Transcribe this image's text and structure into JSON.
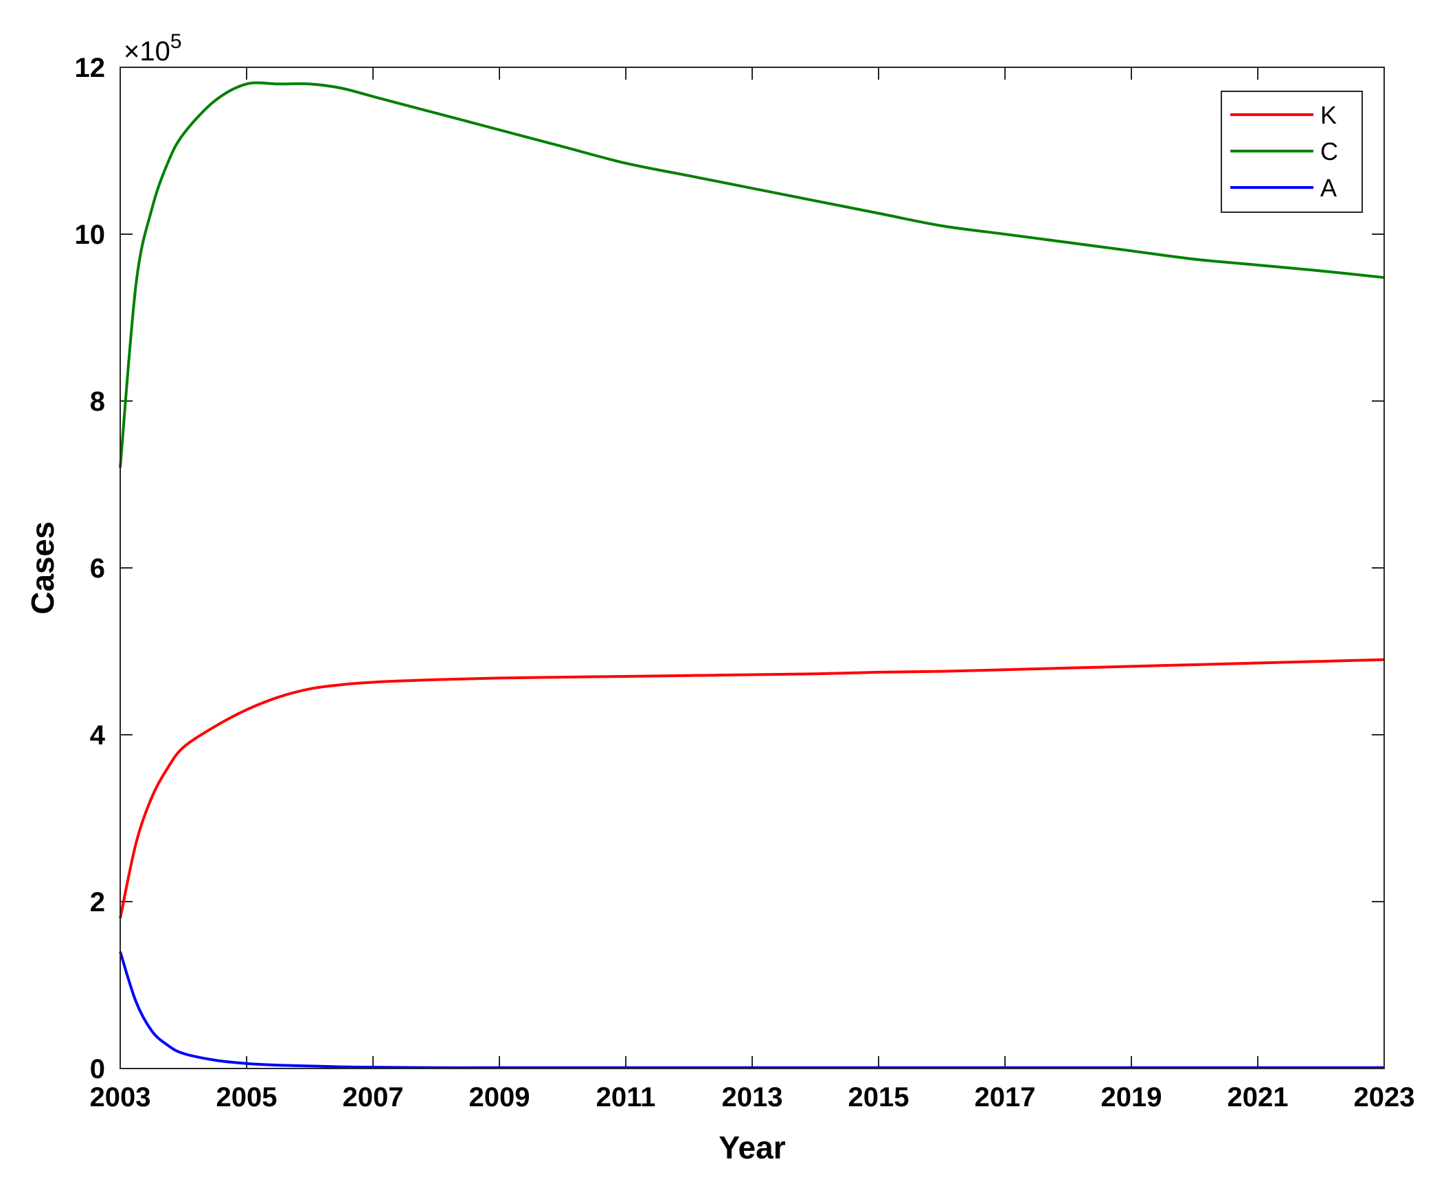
{
  "chart_data": {
    "type": "line",
    "xlabel": "Year",
    "ylabel": "Cases",
    "y_multiplier_label": "×10",
    "y_multiplier_exponent": "5",
    "xlim": [
      2003,
      2023
    ],
    "ylim": [
      0,
      12
    ],
    "x_ticks": [
      "2003",
      "2005",
      "2007",
      "2009",
      "2011",
      "2013",
      "2015",
      "2017",
      "2019",
      "2021",
      "2023"
    ],
    "y_ticks": [
      "0",
      "2",
      "4",
      "6",
      "8",
      "10",
      "12"
    ],
    "legend_position": "top-right",
    "grid": false,
    "x": [
      2003,
      2003.25,
      2003.5,
      2003.75,
      2004,
      2004.5,
      2005,
      2005.5,
      2006,
      2006.5,
      2007,
      2008,
      2009,
      2010,
      2011,
      2012,
      2013,
      2014,
      2015,
      2016,
      2017,
      2018,
      2019,
      2020,
      2021,
      2022,
      2023
    ],
    "series": [
      {
        "name": "K",
        "color": "#ff0000",
        "values": [
          1.8,
          2.7,
          3.25,
          3.6,
          3.85,
          4.1,
          4.3,
          4.45,
          4.55,
          4.6,
          4.63,
          4.66,
          4.68,
          4.69,
          4.7,
          4.71,
          4.72,
          4.73,
          4.75,
          4.76,
          4.78,
          4.8,
          4.82,
          4.84,
          4.86,
          4.88,
          4.9
        ]
      },
      {
        "name": "C",
        "color": "#008000",
        "values": [
          7.2,
          9.4,
          10.3,
          10.85,
          11.2,
          11.6,
          11.8,
          11.8,
          11.8,
          11.75,
          11.65,
          11.45,
          11.25,
          11.05,
          10.85,
          10.7,
          10.55,
          10.4,
          10.25,
          10.1,
          10.0,
          9.9,
          9.8,
          9.7,
          9.63,
          9.56,
          9.48
        ]
      },
      {
        "name": "A",
        "color": "#0000ff",
        "values": [
          1.4,
          0.8,
          0.45,
          0.28,
          0.18,
          0.1,
          0.06,
          0.04,
          0.03,
          0.02,
          0.015,
          0.01,
          0.01,
          0.01,
          0.01,
          0.01,
          0.01,
          0.01,
          0.01,
          0.01,
          0.01,
          0.01,
          0.01,
          0.01,
          0.01,
          0.01,
          0.01
        ]
      }
    ]
  }
}
